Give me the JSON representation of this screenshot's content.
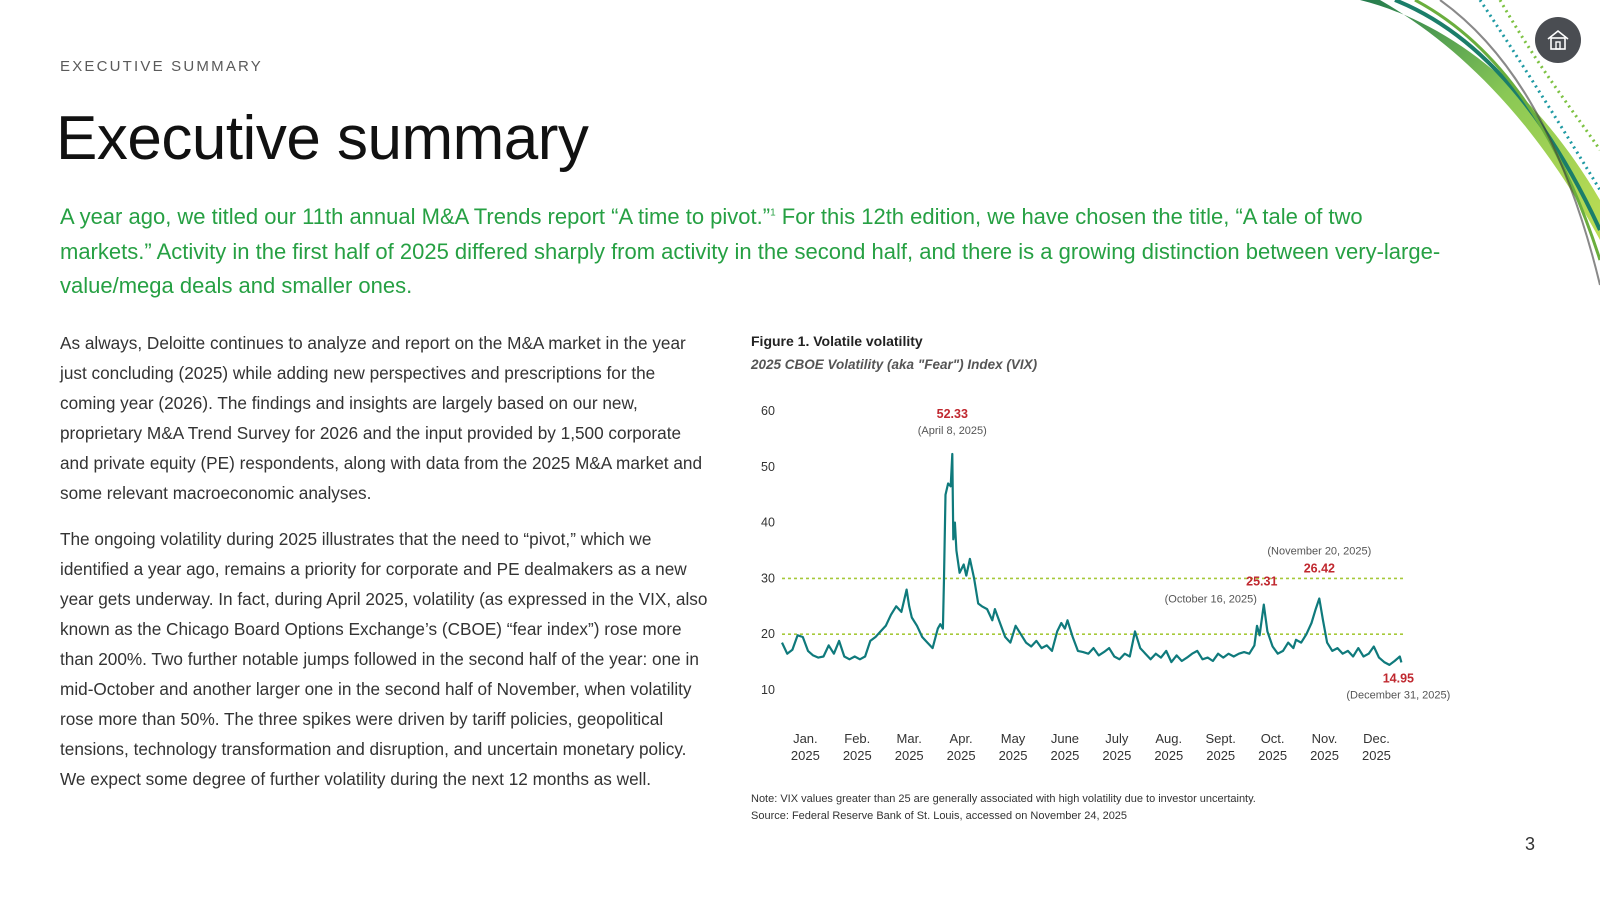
{
  "header": {
    "eyebrow": "EXECUTIVE SUMMARY",
    "title": "Executive summary"
  },
  "lead": {
    "part1": "A year ago, we titled our 11th annual M&A Trends report “A time to pivot.”",
    "footnote": "1",
    "part2": " For this 12th edition, we have chosen the title, “A tale of two markets.” Activity in the first half of 2025 differed sharply from activity in the second half, and there is a growing distinction between very-large-value/mega deals and smaller ones."
  },
  "body": {
    "paragraph1": "As always, Deloitte continues to analyze and report on the M&A market in the year just concluding (2025) while adding new perspectives and prescriptions for the coming year (2026). The findings and insights are largely based on our new, proprietary M&A Trend Survey for 2026 and the input provided by 1,500 corporate and private equity (PE) respondents, along with data from the 2025 M&A market and some relevant macroeconomic analyses.",
    "paragraph2": "The ongoing volatility during 2025 illustrates that the need to “pivot,” which we identified a year ago, remains a priority for corporate and PE dealmakers as a new year gets underway. In fact, during April 2025, volatility (as expressed in the VIX, also known as the Chicago Board Options Exchange’s (CBOE) “fear index”) rose more than 200%. Two further notable jumps followed in the second half of the year: one in mid-October and another larger one in the second half of November, when volatility rose more than 50%. The three spikes were driven by tariff policies, geopolitical tensions, technology transformation and disruption, and uncertain monetary policy. We expect some degree of further volatility during the next 12 months as well."
  },
  "figure": {
    "title": "Figure 1. Volatile volatility",
    "subtitle": "2025 CBOE Volatility (aka \"Fear\") Index (VIX)",
    "note": "Note: VIX values greater than 25 are generally associated with high volatility due to investor uncertainty.",
    "source": "Source: Federal Reserve Bank of St. Louis, accessed on November 24, 2025"
  },
  "chart_data": {
    "type": "line",
    "title": "2025 CBOE Volatility (aka \"Fear\") Index (VIX)",
    "xlabel": "",
    "ylabel": "",
    "ylim": [
      10,
      60
    ],
    "yticks": [
      10,
      20,
      30,
      40,
      50,
      60
    ],
    "xlim": [
      0,
      12
    ],
    "month_ticks": [
      {
        "month": "Jan.",
        "year": "2025"
      },
      {
        "month": "Feb.",
        "year": "2025"
      },
      {
        "month": "Mar.",
        "year": "2025"
      },
      {
        "month": "Apr.",
        "year": "2025"
      },
      {
        "month": "May",
        "year": "2025"
      },
      {
        "month": "June",
        "year": "2025"
      },
      {
        "month": "July",
        "year": "2025"
      },
      {
        "month": "Aug.",
        "year": "2025"
      },
      {
        "month": "Sept.",
        "year": "2025"
      },
      {
        "month": "Oct.",
        "year": "2025"
      },
      {
        "month": "Nov.",
        "year": "2025"
      },
      {
        "month": "Dec.",
        "year": "2025"
      }
    ],
    "reference_lines": [
      20,
      30
    ],
    "series": [
      {
        "name": "VIX",
        "color": "#0f7a7c",
        "points": [
          [
            0.0,
            18.5
          ],
          [
            0.1,
            16.5
          ],
          [
            0.2,
            17.2
          ],
          [
            0.3,
            19.8
          ],
          [
            0.4,
            19.5
          ],
          [
            0.5,
            17.0
          ],
          [
            0.6,
            16.2
          ],
          [
            0.7,
            15.8
          ],
          [
            0.8,
            16.0
          ],
          [
            0.9,
            18.0
          ],
          [
            1.0,
            16.5
          ],
          [
            1.1,
            18.8
          ],
          [
            1.2,
            16.0
          ],
          [
            1.3,
            15.5
          ],
          [
            1.4,
            16.0
          ],
          [
            1.5,
            15.5
          ],
          [
            1.6,
            16.0
          ],
          [
            1.7,
            18.8
          ],
          [
            1.8,
            19.5
          ],
          [
            1.9,
            20.5
          ],
          [
            2.0,
            21.5
          ],
          [
            2.1,
            23.5
          ],
          [
            2.2,
            25.0
          ],
          [
            2.3,
            24.0
          ],
          [
            2.4,
            28.0
          ],
          [
            2.45,
            25.0
          ],
          [
            2.5,
            23.0
          ],
          [
            2.6,
            21.5
          ],
          [
            2.7,
            19.5
          ],
          [
            2.8,
            18.5
          ],
          [
            2.9,
            17.5
          ],
          [
            3.0,
            21.0
          ],
          [
            3.05,
            21.8
          ],
          [
            3.1,
            21.0
          ],
          [
            3.12,
            30.0
          ],
          [
            3.15,
            45.0
          ],
          [
            3.2,
            47.0
          ],
          [
            3.25,
            46.5
          ],
          [
            3.28,
            52.3
          ],
          [
            3.3,
            37.0
          ],
          [
            3.33,
            40.0
          ],
          [
            3.36,
            35.0
          ],
          [
            3.42,
            31.0
          ],
          [
            3.5,
            32.5
          ],
          [
            3.55,
            30.5
          ],
          [
            3.62,
            33.5
          ],
          [
            3.7,
            30.0
          ],
          [
            3.78,
            25.5
          ],
          [
            3.85,
            25.0
          ],
          [
            3.95,
            24.5
          ],
          [
            4.05,
            22.5
          ],
          [
            4.1,
            24.5
          ],
          [
            4.2,
            22.0
          ],
          [
            4.3,
            19.5
          ],
          [
            4.4,
            18.5
          ],
          [
            4.5,
            21.5
          ],
          [
            4.6,
            20.0
          ],
          [
            4.7,
            18.5
          ],
          [
            4.8,
            17.8
          ],
          [
            4.9,
            18.8
          ],
          [
            5.0,
            17.5
          ],
          [
            5.1,
            18.0
          ],
          [
            5.2,
            17.0
          ],
          [
            5.3,
            20.5
          ],
          [
            5.38,
            22.0
          ],
          [
            5.45,
            21.0
          ],
          [
            5.5,
            22.5
          ],
          [
            5.6,
            19.5
          ],
          [
            5.7,
            17.0
          ],
          [
            5.8,
            16.8
          ],
          [
            5.9,
            16.5
          ],
          [
            6.0,
            17.5
          ],
          [
            6.1,
            16.2
          ],
          [
            6.2,
            16.8
          ],
          [
            6.3,
            17.5
          ],
          [
            6.4,
            16.0
          ],
          [
            6.5,
            15.5
          ],
          [
            6.6,
            16.5
          ],
          [
            6.7,
            16.0
          ],
          [
            6.8,
            20.5
          ],
          [
            6.9,
            17.5
          ],
          [
            7.0,
            16.5
          ],
          [
            7.1,
            15.5
          ],
          [
            7.2,
            16.5
          ],
          [
            7.3,
            15.8
          ],
          [
            7.4,
            17.0
          ],
          [
            7.5,
            15.0
          ],
          [
            7.6,
            16.2
          ],
          [
            7.7,
            15.2
          ],
          [
            7.8,
            15.8
          ],
          [
            7.9,
            16.5
          ],
          [
            8.0,
            17.0
          ],
          [
            8.1,
            15.5
          ],
          [
            8.2,
            15.8
          ],
          [
            8.3,
            15.2
          ],
          [
            8.4,
            16.5
          ],
          [
            8.5,
            15.8
          ],
          [
            8.6,
            16.5
          ],
          [
            8.7,
            16.0
          ],
          [
            8.8,
            16.5
          ],
          [
            8.9,
            16.8
          ],
          [
            9.0,
            16.5
          ],
          [
            9.1,
            18.0
          ],
          [
            9.15,
            21.5
          ],
          [
            9.2,
            19.8
          ],
          [
            9.28,
            25.3
          ],
          [
            9.35,
            20.5
          ],
          [
            9.45,
            17.8
          ],
          [
            9.55,
            16.5
          ],
          [
            9.65,
            17.0
          ],
          [
            9.75,
            18.5
          ],
          [
            9.85,
            17.5
          ],
          [
            9.9,
            19.0
          ],
          [
            10.0,
            18.5
          ],
          [
            10.1,
            20.0
          ],
          [
            10.2,
            22.0
          ],
          [
            10.28,
            24.5
          ],
          [
            10.35,
            26.4
          ],
          [
            10.42,
            22.5
          ],
          [
            10.5,
            18.5
          ],
          [
            10.6,
            17.0
          ],
          [
            10.7,
            17.5
          ],
          [
            10.8,
            16.5
          ],
          [
            10.9,
            17.0
          ],
          [
            11.0,
            16.0
          ],
          [
            11.1,
            17.5
          ],
          [
            11.2,
            16.0
          ],
          [
            11.3,
            16.5
          ],
          [
            11.4,
            17.8
          ],
          [
            11.5,
            15.8
          ],
          [
            11.6,
            15.0
          ],
          [
            11.7,
            14.5
          ],
          [
            11.8,
            15.2
          ],
          [
            11.9,
            16.0
          ],
          [
            11.93,
            14.95
          ]
        ]
      }
    ],
    "annotations": [
      {
        "value": "52.33",
        "date": "(April 8, 2025)",
        "x": 3.28,
        "y": 52.33
      },
      {
        "value": "25.31",
        "date": "(October 16, 2025)",
        "x": 9.28,
        "y": 25.31
      },
      {
        "value": "26.42",
        "date": "(November 20, 2025)",
        "x": 10.35,
        "y": 26.42
      },
      {
        "value": "14.95",
        "date": "(December 31, 2025)",
        "x": 11.93,
        "y": 14.95
      }
    ]
  },
  "page": {
    "number": "3"
  },
  "nav": {
    "home_label": "Home"
  },
  "colors": {
    "accent_green": "#26a043",
    "line_teal": "#0f7a7c",
    "annotation_red": "#c0282f",
    "ref_line": "#a6c93a"
  }
}
